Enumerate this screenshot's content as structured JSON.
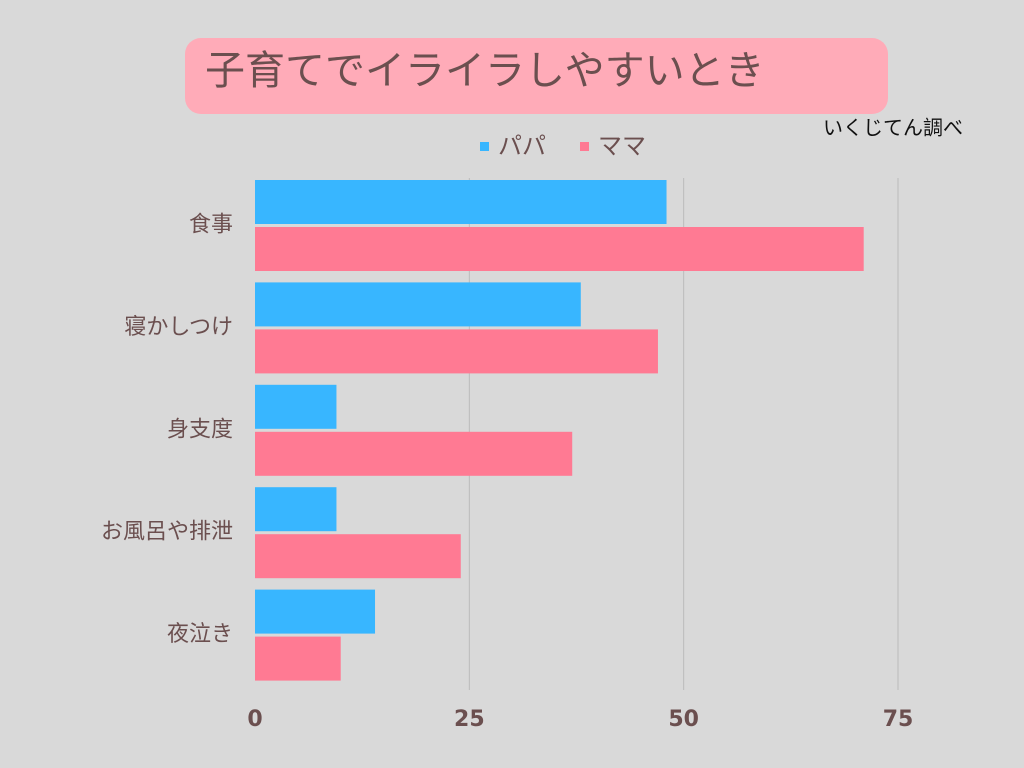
{
  "chart_data": {
    "type": "bar",
    "orientation": "horizontal",
    "title": "子育てでイライラしやすいとき",
    "source": "いくじてん調べ",
    "categories": [
      "食事",
      "寝かしつけ",
      "身支度",
      "お風呂や排泄",
      "夜泣き"
    ],
    "series": [
      {
        "name": "パパ",
        "color": "#38b6ff",
        "values": [
          48,
          38,
          9.5,
          9.5,
          14
        ]
      },
      {
        "name": "ママ",
        "color": "#ff7a93",
        "values": [
          71,
          47,
          37,
          24,
          10
        ]
      }
    ],
    "xlim": [
      0,
      75
    ],
    "xticks": [
      0,
      25,
      50,
      75
    ],
    "grid": true,
    "legend": "top"
  }
}
